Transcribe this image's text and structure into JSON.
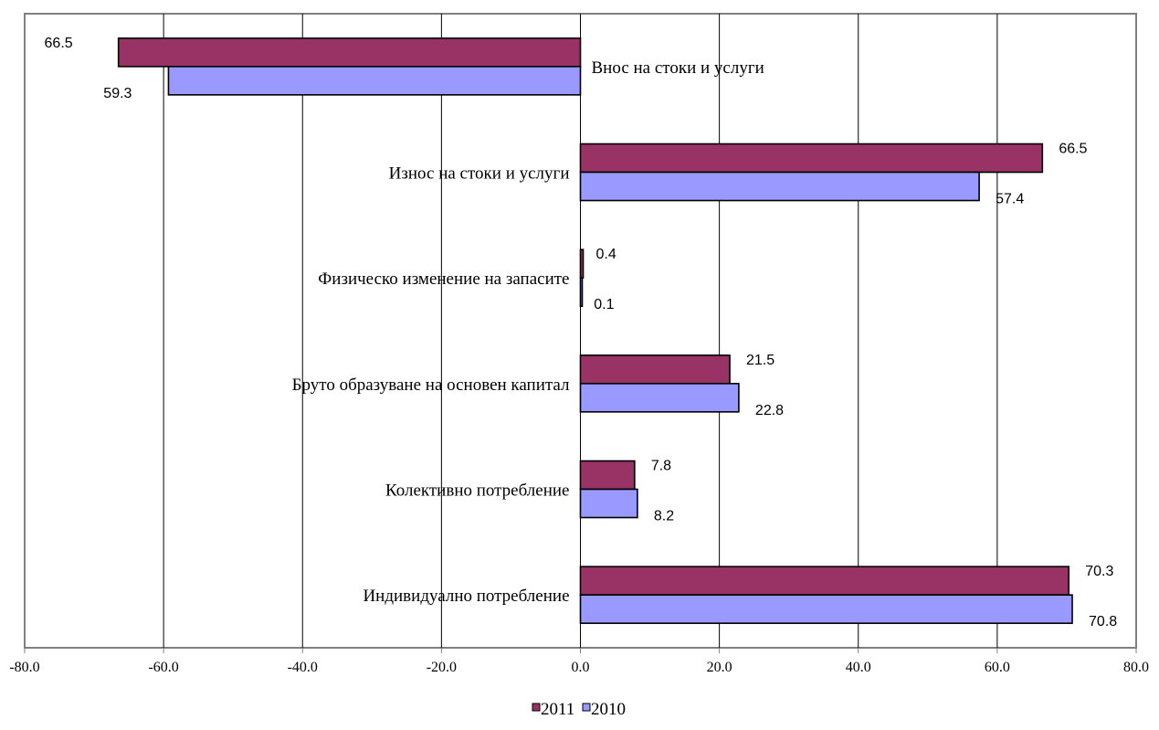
{
  "chart_data": {
    "type": "bar",
    "orientation": "horizontal",
    "title": "",
    "xlabel": "",
    "ylabel": "",
    "xlim": [
      -80,
      80
    ],
    "x_ticks": [
      "-80.0",
      "-60.0",
      "-40.0",
      "-20.0",
      "0.0",
      "20.0",
      "40.0",
      "60.0",
      "80.0"
    ],
    "grid": true,
    "legend_position": "bottom",
    "categories": [
      "Внос на стоки и услуги",
      "Износ на стоки и услуги",
      "Физическо изменение на запасите",
      "Бруто образуване на основен капитал",
      "Колективно потребление",
      "Индивидуално потребление"
    ],
    "series": [
      {
        "name": "2011",
        "color": "#993366",
        "values": [
          -66.5,
          66.5,
          0.4,
          21.5,
          7.8,
          70.3
        ],
        "labels": [
          "66.5",
          "66.5",
          "0.4",
          "21.5",
          "7.8",
          "70.3"
        ]
      },
      {
        "name": "2010",
        "color": "#9999ff",
        "values": [
          -59.3,
          57.4,
          0.1,
          22.8,
          8.2,
          70.8
        ],
        "labels": [
          "59.3",
          "57.4",
          "0.1",
          "22.8",
          "8.2",
          "70.8"
        ]
      }
    ]
  }
}
